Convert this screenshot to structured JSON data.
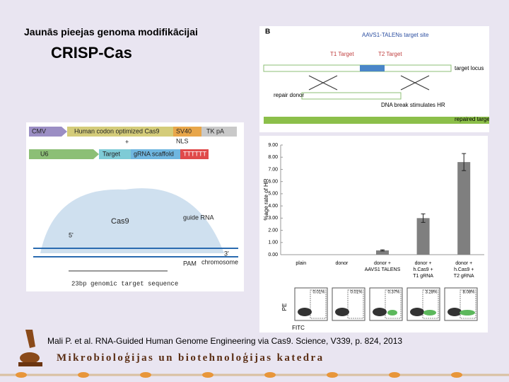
{
  "header": {
    "title": "Jaunās pieejas genoma modifikācijai",
    "subtitle": "CRISP-Cas"
  },
  "figure_a": {
    "labels": [
      "CMV",
      "Human codon optimized Cas9",
      "SV40",
      "TK pA",
      "NLS",
      "+",
      "U6",
      "Target",
      "gRNA scaffold",
      "TTTTTT",
      "Cas9",
      "guide RNA",
      "PAM",
      "chromosome",
      "23bp genomic target sequence",
      "5'",
      "3'"
    ]
  },
  "figure_b": {
    "panel": "B",
    "site": "AAVS1-TALENs target site",
    "labels": [
      "T1 Target",
      "T2 Target",
      "target locus",
      "repair donor",
      "DNA break stimulates HR",
      "repaired target locus"
    ]
  },
  "figure_c": {
    "y_label": "%age rate of HR",
    "categories": [
      "plain",
      "donor",
      "donor + AAVS1 TALENS",
      "donor + h.Cas9 + T1 gRNA",
      "donor + h.Cas9 + T2 gRNA"
    ],
    "values": [
      0,
      0,
      0.35,
      3.0,
      7.6
    ],
    "errors": [
      0,
      0,
      0.05,
      0.35,
      0.7
    ],
    "color": "#7f7f7f",
    "ylim": [
      0,
      9
    ],
    "yticks": [
      {
        "value": 0,
        "label": "0.00"
      },
      {
        "value": 1,
        "label": "1.00"
      },
      {
        "value": 2,
        "label": "2.00"
      },
      {
        "value": 3,
        "label": "3.00"
      },
      {
        "value": 4,
        "label": "4.00"
      },
      {
        "value": 5,
        "label": "5.00"
      },
      {
        "value": 6,
        "label": "6.00"
      },
      {
        "value": 7,
        "label": "7.00"
      },
      {
        "value": 8,
        "label": "8.00"
      },
      {
        "value": 9,
        "label": "9.00"
      }
    ],
    "flow_y": "PE",
    "flow_x": "FITC",
    "flow_labels": [
      "0.01%",
      "0.01%",
      "0.37%",
      "3.28%",
      "8.08%"
    ]
  },
  "citation": "Mali P. et al. RNA-Guided Human Genome Engineering via Cas9.  Science, V339, p. 824, 2013",
  "footer": "Mikrobioloģijas un biotehnoloģijas katedra"
}
